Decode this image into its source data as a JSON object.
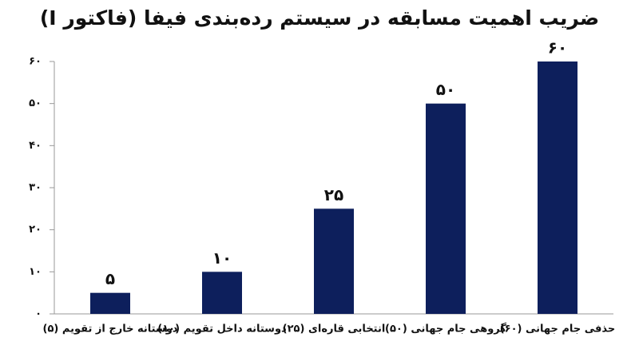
{
  "chart_data": {
    "type": "bar",
    "title": "ضریب اهمیت مسابقه در سیستم رده‌بندی فیفا (فاکتور I)",
    "categories": [
      "دوستانه خارج از تقویم (۵)",
      "دوستانه داخل تقویم (۱۰)",
      "انتخابی قاره‌ای (۲۵)",
      "گروهی جام جهانی (۵۰)",
      "حذفی جام جهانی (۶۰)"
    ],
    "values": [
      5,
      10,
      25,
      50,
      60
    ],
    "value_labels": [
      "۵",
      "۱۰",
      "۲۵",
      "۵۰",
      "۶۰"
    ],
    "color": "#0d1f5c",
    "ylim": [
      0,
      60
    ],
    "yticks": [
      {
        "value": 0,
        "label": "۰"
      },
      {
        "value": 10,
        "label": "۱۰"
      },
      {
        "value": 20,
        "label": "۲۰"
      },
      {
        "value": 30,
        "label": "۳۰"
      },
      {
        "value": 40,
        "label": "۴۰"
      },
      {
        "value": 50,
        "label": "۵۰"
      },
      {
        "value": 60,
        "label": "۶۰"
      }
    ],
    "grid": false
  }
}
